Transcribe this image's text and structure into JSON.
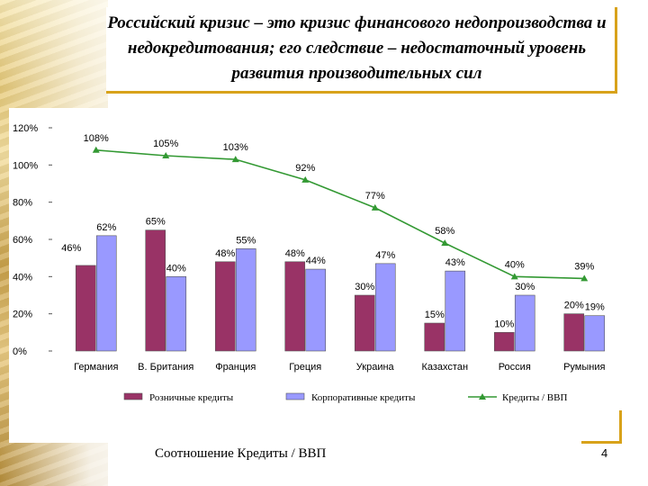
{
  "slide": {
    "title": "Российский кризис – это кризис финансового недопроизводства и недокредитования; его следствие – недостаточный уровень развития производительных сил",
    "footer": "Соотношение Кредиты / ВВП",
    "page_number": "4"
  },
  "colors": {
    "retail": "#993366",
    "corporate": "#9999ff",
    "line": "#339933",
    "accent_frame": "#d8a21a"
  },
  "chart_data": {
    "type": "bar",
    "categories": [
      "Германия",
      "В. Британия",
      "Франция",
      "Греция",
      "Украина",
      "Казахстан",
      "Россия",
      "Румыния"
    ],
    "series": [
      {
        "name": "Розничные кредиты",
        "type": "bar",
        "color": "#993366",
        "values": [
          46,
          65,
          48,
          48,
          30,
          15,
          10,
          20
        ]
      },
      {
        "name": "Корпоративные кредиты",
        "type": "bar",
        "color": "#9999ff",
        "values": [
          62,
          40,
          55,
          44,
          47,
          43,
          30,
          19
        ]
      },
      {
        "name": "Кредиты / ВВП",
        "type": "line",
        "color": "#339933",
        "marker": "triangle",
        "values": [
          108,
          105,
          103,
          92,
          77,
          58,
          40,
          39
        ]
      }
    ],
    "data_labels": {
      "retail": [
        "46%",
        "65%",
        "48%",
        "48%",
        "30%",
        "15%",
        "10%",
        "20%"
      ],
      "corporate": [
        "62%",
        "40%",
        "55%",
        "44%",
        "47%",
        "43%",
        "30%",
        "19%"
      ],
      "line": [
        "108%",
        "105%",
        "103%",
        "92%",
        "77%",
        "58%",
        "40%",
        "39%"
      ]
    },
    "y_ticks": [
      "0%",
      "20%",
      "40%",
      "60%",
      "80%",
      "100%",
      "120%"
    ],
    "ylim": [
      0,
      120
    ],
    "grid": false,
    "legend_position": "bottom"
  }
}
